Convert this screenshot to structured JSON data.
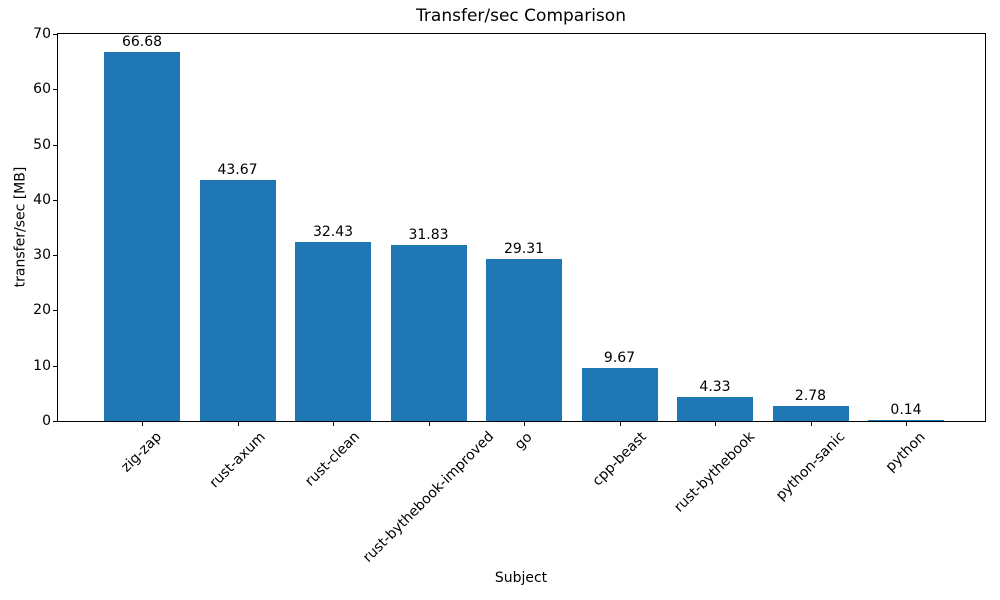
{
  "chart_data": {
    "type": "bar",
    "title": "Transfer/sec Comparison",
    "xlabel": "Subject",
    "ylabel": "transfer/sec [MB]",
    "categories": [
      "zig-zap",
      "rust-axum",
      "rust-clean",
      "rust-bythebook-improved",
      "go",
      "cpp-beast",
      "rust-bythebook",
      "python-sanic",
      "python"
    ],
    "values": [
      66.68,
      43.67,
      32.43,
      31.83,
      29.31,
      9.67,
      4.33,
      2.78,
      0.14
    ],
    "value_labels": [
      "66.68",
      "43.67",
      "32.43",
      "31.83",
      "29.31",
      "9.67",
      "4.33",
      "2.78",
      "0.14"
    ],
    "ylim": [
      0,
      70
    ],
    "yticks": [
      0,
      10,
      20,
      30,
      40,
      50,
      60,
      70
    ],
    "bar_color": "#1f77b4",
    "text_color": "#000000",
    "grid": false,
    "legend": null,
    "xtick_rotation_deg": 45
  }
}
